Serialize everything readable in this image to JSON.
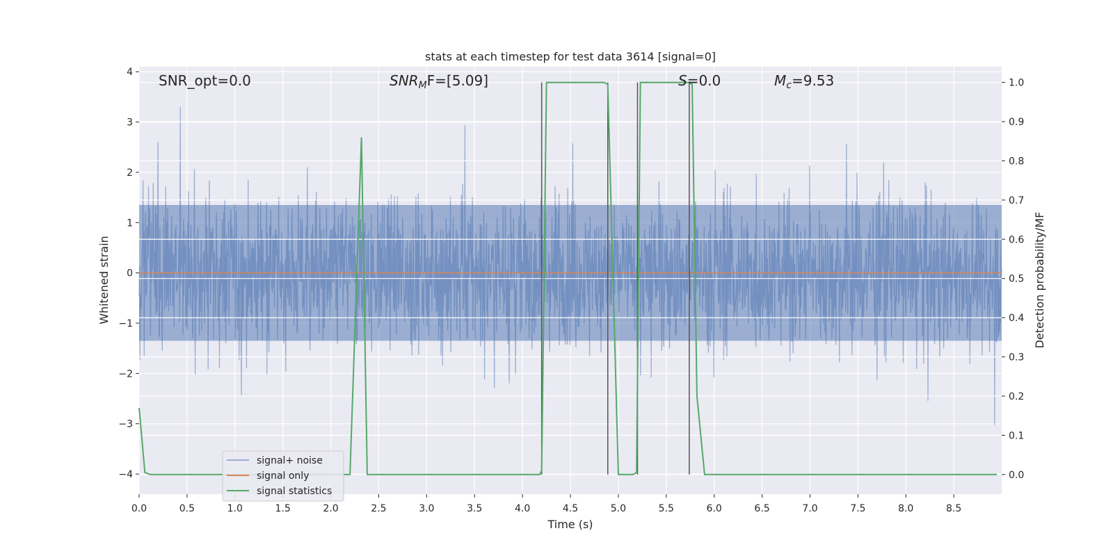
{
  "chart_data": {
    "type": "line",
    "title": "stats at each timestep for test data 3614 [signal=0]",
    "xlabel": "Time (s)",
    "ylabel": "Whitened strain",
    "y2label": "Detection probability/MF",
    "xlim": [
      0,
      9
    ],
    "ylim": [
      -4.4,
      4.1
    ],
    "y2lim": [
      -0.05,
      1.04
    ],
    "xticks": [
      "0.0",
      "0.5",
      "1.0",
      "1.5",
      "2.0",
      "2.5",
      "3.0",
      "3.5",
      "4.0",
      "4.5",
      "5.0",
      "5.5",
      "6.0",
      "6.5",
      "7.0",
      "7.5",
      "8.0",
      "8.5"
    ],
    "yticks": [
      "4",
      "3",
      "2",
      "1",
      "0",
      "−1",
      "−2",
      "−3",
      "−4"
    ],
    "y2ticks": [
      "1.0",
      "0.9",
      "0.8",
      "0.7",
      "0.6",
      "0.5",
      "0.4",
      "0.3",
      "0.2",
      "0.1",
      "0.0"
    ],
    "annotations": {
      "snr_opt": "SNR_opt=0.0",
      "snr_mf_base": "SNR",
      "snr_mf_sub": "M",
      "snr_mf_rest": "F=[5.09]",
      "s_italic": "S",
      "s_rest": "=0.0",
      "mc_base": "M",
      "mc_sub": "c",
      "mc_rest": "=9.53"
    },
    "series": [
      {
        "name": "signal+ noise",
        "color": "#4c72b0",
        "note": "whitened strain noise, amplitude roughly within [-3.6, 3.7]"
      },
      {
        "name": "signal only",
        "color": "#dd8452",
        "values_y": [
          0,
          0
        ]
      },
      {
        "name": "signal statistics",
        "color": "#55a868",
        "x": [
          0.0,
          0.06,
          0.12,
          2.2,
          2.32,
          2.38,
          4.18,
          4.2,
          4.25,
          4.3,
          4.85,
          4.89,
          5.0,
          5.15,
          5.19,
          5.23,
          5.28,
          5.73,
          5.77,
          5.82,
          5.9,
          6.0,
          8.95
        ],
        "y": [
          0.17,
          0.005,
          0.0,
          0.0,
          0.86,
          0.0,
          0.0,
          0.01,
          1.0,
          1.0,
          1.0,
          0.995,
          0.0,
          0.0,
          0.005,
          1.0,
          1.0,
          1.0,
          0.995,
          0.2,
          0.0,
          0.0,
          0.0
        ]
      }
    ],
    "vlines_x": [
      4.2,
      4.89,
      5.2,
      5.74
    ],
    "legend": {
      "placement": "lower-left",
      "entries": [
        "signal+ noise",
        "signal only",
        "signal statistics"
      ]
    },
    "grid": true,
    "colors": {
      "background": "#eaeaf2",
      "grid": "#ffffff",
      "vline": "#555555"
    }
  }
}
